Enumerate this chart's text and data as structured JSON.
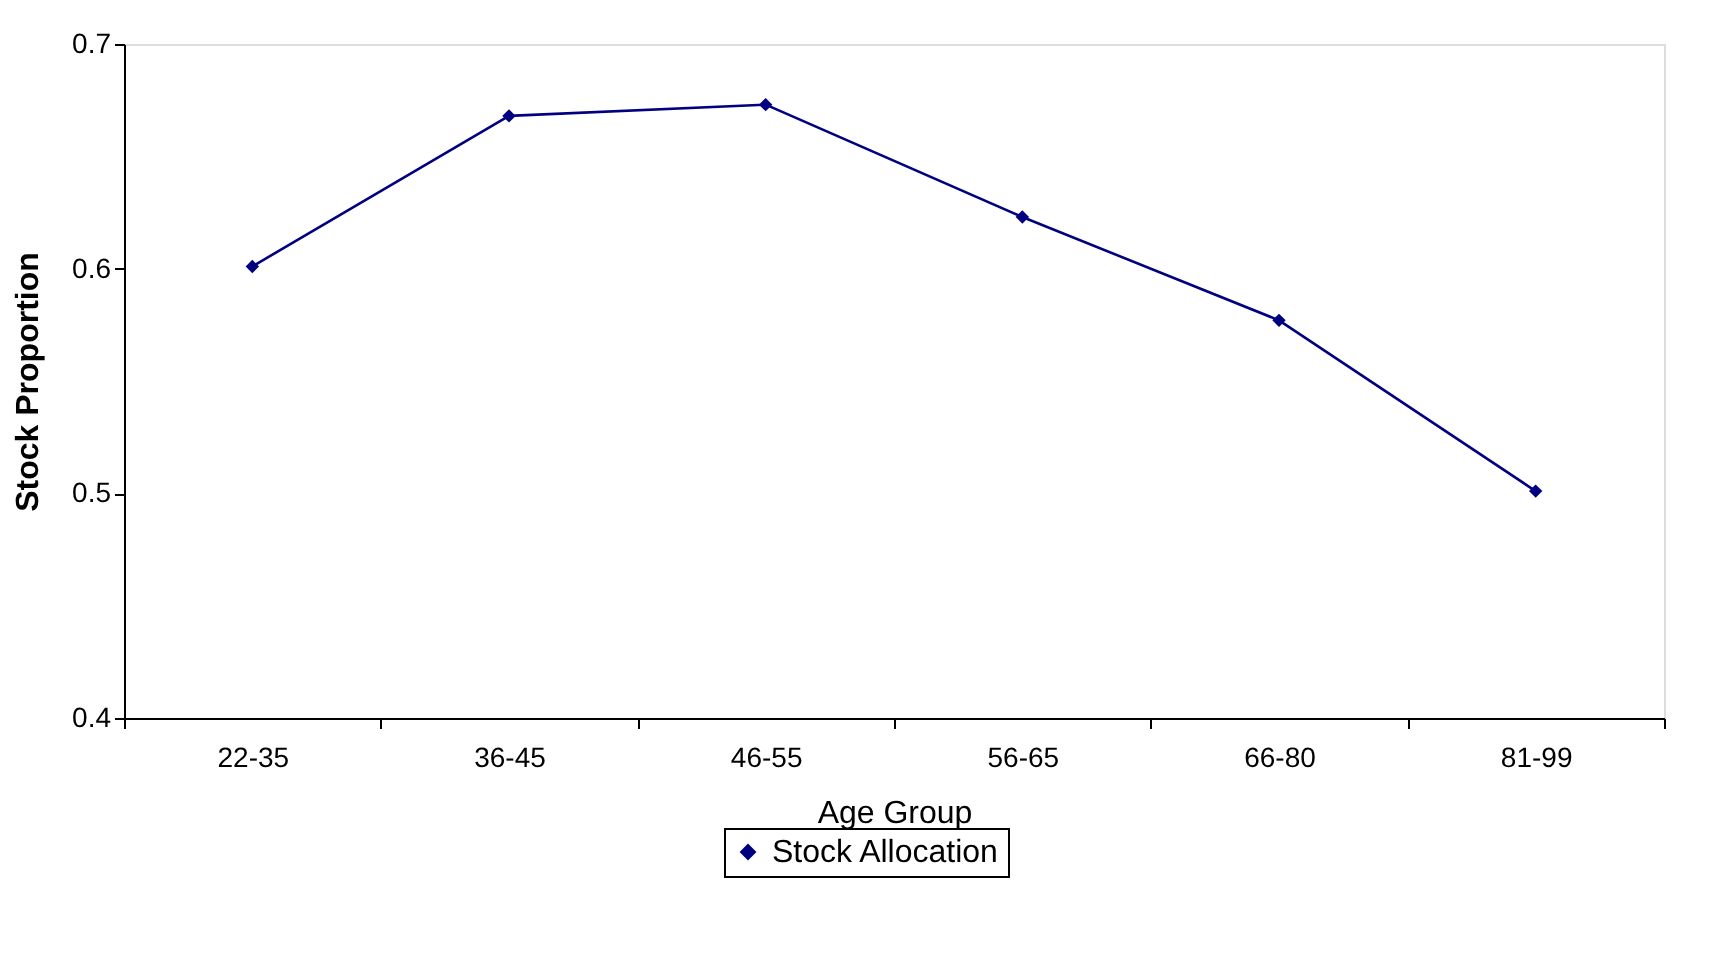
{
  "chart_data": {
    "type": "line",
    "xlabel": "Age Group",
    "ylabel": "Stock Proportion",
    "categories": [
      "22-35",
      "36-45",
      "46-55",
      "56-65",
      "66-80",
      "81-99"
    ],
    "series": [
      {
        "name": "Stock Allocation",
        "color": "#000080",
        "values": [
          0.601,
          0.668,
          0.673,
          0.623,
          0.577,
          0.501
        ]
      }
    ],
    "ylim": [
      0.4,
      0.7
    ],
    "yticks": [
      0.4,
      0.5,
      0.6,
      0.7
    ],
    "grid": false,
    "legend": "bottom",
    "marker": "diamond",
    "line_style": "solid"
  }
}
